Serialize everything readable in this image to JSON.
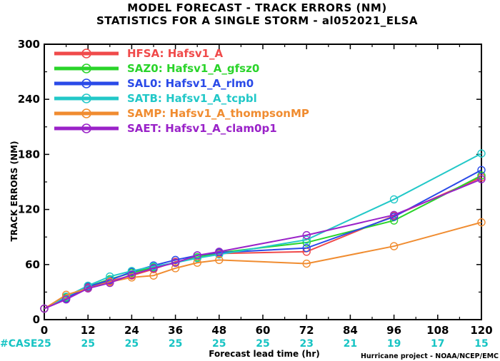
{
  "chart_data": {
    "type": "line",
    "title": "MODEL FORECAST - TRACK ERRORS (NM)",
    "subtitle": "STATISTICS FOR A SINGLE STORM - al052021_ELSA",
    "xlabel": "Forecast lead time (hr)",
    "ylabel": "TRACK ERRORS (NM)",
    "xlim": [
      0,
      120
    ],
    "ylim": [
      0,
      300
    ],
    "x_ticks": [
      "0",
      "12",
      "24",
      "36",
      "48",
      "60",
      "72",
      "84",
      "96",
      "108",
      "120"
    ],
    "y_ticks": [
      "0",
      "60",
      "120",
      "180",
      "240",
      "300"
    ],
    "grid": false,
    "legend_position": "top-left",
    "case_label": "#CASE",
    "case_counts": [
      {
        "x": 0,
        "label": "25"
      },
      {
        "x": 12,
        "label": "25"
      },
      {
        "x": 24,
        "label": "25"
      },
      {
        "x": 36,
        "label": "25"
      },
      {
        "x": 48,
        "label": "25"
      },
      {
        "x": 60,
        "label": "25"
      },
      {
        "x": 72,
        "label": "23"
      },
      {
        "x": 84,
        "label": "21"
      },
      {
        "x": 96,
        "label": "19"
      },
      {
        "x": 108,
        "label": "17"
      },
      {
        "x": 120,
        "label": "15"
      }
    ],
    "x": [
      0,
      6,
      12,
      18,
      24,
      30,
      36,
      42,
      48,
      72,
      96,
      120
    ],
    "series": [
      {
        "name": "HFSA: Hafsv1_A",
        "color": "#f04a4a",
        "values": [
          12,
          23,
          35,
          42,
          48,
          55,
          63,
          67,
          72,
          74,
          113,
          155
        ]
      },
      {
        "name": "SAZ0: Hafsv1_A_gfsz0",
        "color": "#2ad42a",
        "values": [
          12,
          24,
          36,
          44,
          51,
          57,
          62,
          68,
          73,
          84,
          108,
          157
        ]
      },
      {
        "name": "SAL0: Hafsv1_A_rlm0",
        "color": "#2a4ae8",
        "values": [
          12,
          23,
          36,
          43,
          52,
          59,
          65,
          70,
          73,
          78,
          112,
          163
        ]
      },
      {
        "name": "SATB: Hafsv1_A_tcpbl",
        "color": "#22c8c8",
        "values": [
          12,
          25,
          37,
          47,
          53,
          58,
          62,
          67,
          71,
          87,
          131,
          181
        ]
      },
      {
        "name": "SAMP: Hafsv1_A_thompsonMP",
        "color": "#f08c30",
        "values": [
          12,
          27,
          34,
          41,
          46,
          48,
          56,
          62,
          65,
          61,
          80,
          106
        ]
      },
      {
        "name": "SAET: Hafsv1_A_clam0p1",
        "color": "#9a22c8",
        "values": [
          12,
          22,
          34,
          40,
          49,
          56,
          62,
          70,
          74,
          92,
          114,
          153
        ]
      }
    ]
  },
  "credit": "Hurricane project - NOAA/NCEP/EMC"
}
